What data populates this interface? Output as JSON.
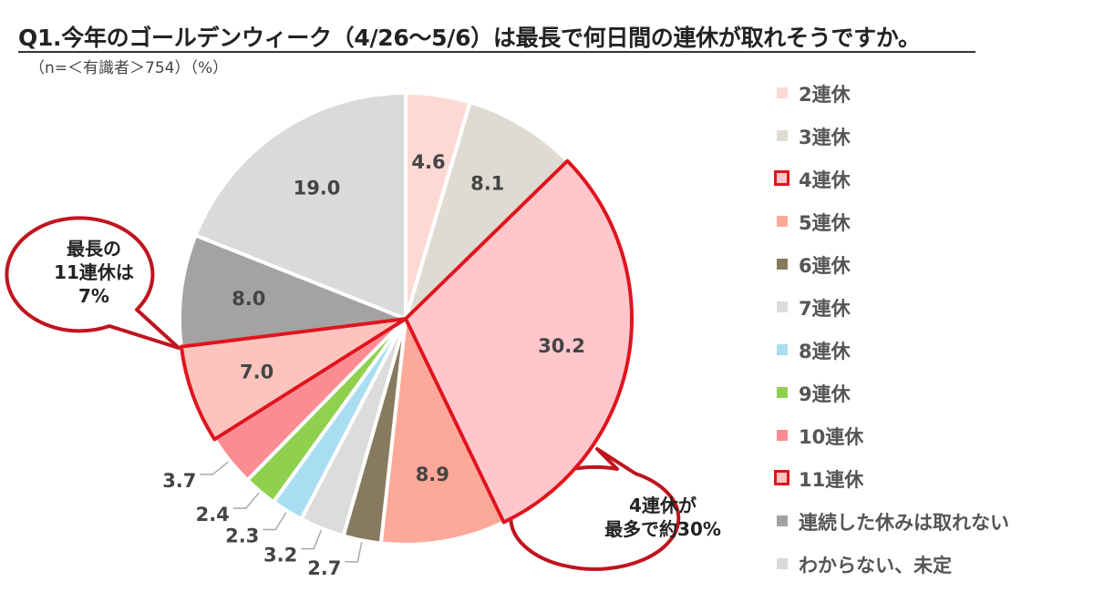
{
  "title": "Q1.今年のゴールデンウィーク（4/26～5/6）は最長で何日間の連休が取れそうですか。",
  "subtitle": "（n=＜有識者＞754）（%）",
  "callouts": {
    "eleven": "最長の\n11連休は\n7%",
    "four": "4連休が\n最多で約30%"
  },
  "chart_data": {
    "type": "pie",
    "unit": "%",
    "slices": [
      {
        "label": "2連休",
        "value": 4.6,
        "color": "#fdd9d3"
      },
      {
        "label": "3連休",
        "value": 8.1,
        "color": "#dedcd2"
      },
      {
        "label": "4連休",
        "value": 30.2,
        "color": "#ffc7cc",
        "highlight": true
      },
      {
        "label": "5連休",
        "value": 8.9,
        "color": "#fda999"
      },
      {
        "label": "6連休",
        "value": 2.7,
        "color": "#877a5f"
      },
      {
        "label": "7連休",
        "value": 3.2,
        "color": "#dcdcdc"
      },
      {
        "label": "8連休",
        "value": 2.3,
        "color": "#a9ddf2"
      },
      {
        "label": "9連休",
        "value": 2.4,
        "color": "#8fd14f"
      },
      {
        "label": "10連休",
        "value": 3.7,
        "color": "#fc8c93"
      },
      {
        "label": "11連休",
        "value": 7.0,
        "color": "#fdc4bd",
        "highlight": true
      },
      {
        "label": "連続した休みは取れない",
        "value": 8.0,
        "color": "#a3a3a3"
      },
      {
        "label": "わからない、未定",
        "value": 19.0,
        "color": "#dadada"
      }
    ],
    "highlight_color": "#e0141e"
  }
}
